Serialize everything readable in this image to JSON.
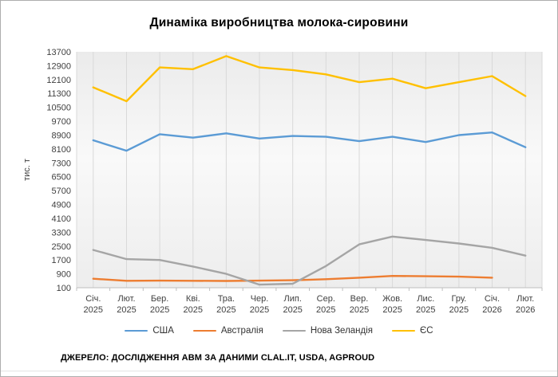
{
  "title": "Динаміка виробництва молока-сировини",
  "source_note": "ДЖЕРЕЛО: ДОСЛІДЖЕННЯ АВМ ЗА ДАНИМИ CLAL.IT, USDA, AGPROUD",
  "chart_data": {
    "type": "line",
    "title": "Динаміка виробництва молока-сировини",
    "xlabel": "",
    "ylabel": "тис. т",
    "ylim": [
      100,
      13700
    ],
    "ytick_step": 800,
    "yticks": [
      100,
      900,
      1700,
      2500,
      3300,
      4100,
      4900,
      5700,
      6500,
      7300,
      8100,
      8900,
      9700,
      10500,
      11300,
      12100,
      12900,
      13700
    ],
    "grid": "vertical-only",
    "legend_position": "bottom",
    "categories": [
      {
        "month": "Січ.",
        "year": "2025"
      },
      {
        "month": "Лют.",
        "year": "2025"
      },
      {
        "month": "Бер.",
        "year": "2025"
      },
      {
        "month": "Кві.",
        "year": "2025"
      },
      {
        "month": "Тра.",
        "year": "2025"
      },
      {
        "month": "Чер.",
        "year": "2025"
      },
      {
        "month": "Лип.",
        "year": "2025"
      },
      {
        "month": "Сер.",
        "year": "2025"
      },
      {
        "month": "Вер.",
        "year": "2025"
      },
      {
        "month": "Жов.",
        "year": "2025"
      },
      {
        "month": "Лис.",
        "year": "2025"
      },
      {
        "month": "Гру.",
        "year": "2025"
      },
      {
        "month": "Січ.",
        "year": "2026"
      },
      {
        "month": "Лют.",
        "year": "2026"
      }
    ],
    "series": [
      {
        "name": "США",
        "color": "#5B9BD5",
        "values": [
          8600,
          8000,
          8950,
          8750,
          9000,
          8700,
          8850,
          8800,
          8550,
          8800,
          8500,
          8900,
          9050,
          8200
        ]
      },
      {
        "name": "Австралія",
        "color": "#ED7D31",
        "values": [
          620,
          500,
          510,
          500,
          490,
          510,
          530,
          590,
          680,
          780,
          760,
          740,
          680,
          null
        ]
      },
      {
        "name": "Нова Зеландія",
        "color": "#A5A5A5",
        "values": [
          2280,
          1750,
          1700,
          1320,
          900,
          280,
          330,
          1350,
          2600,
          3050,
          2850,
          2650,
          2400,
          1950
        ]
      },
      {
        "name": "ЄС",
        "color": "#FFC000",
        "values": [
          11650,
          10850,
          12800,
          12700,
          13450,
          12800,
          12650,
          12400,
          11950,
          12150,
          11600,
          11950,
          12300,
          11150
        ]
      }
    ]
  }
}
